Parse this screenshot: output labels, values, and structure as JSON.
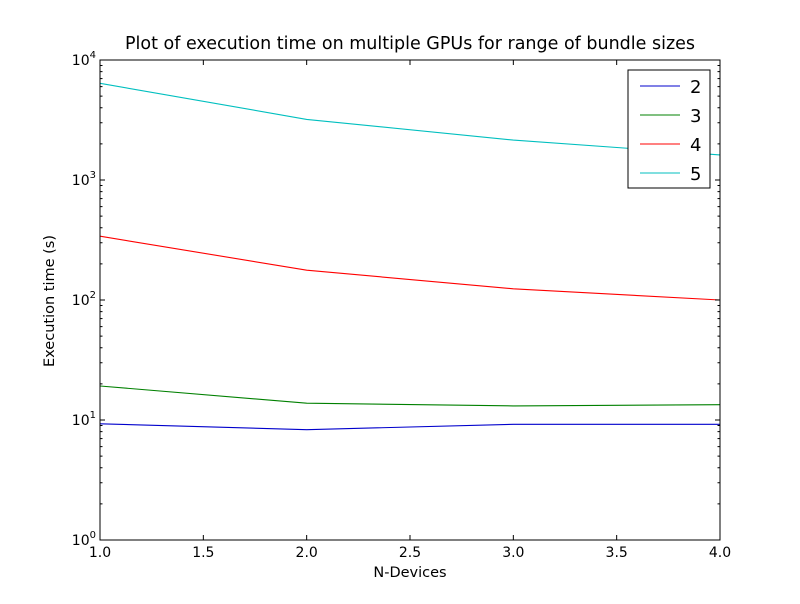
{
  "chart_data": {
    "type": "line",
    "title": "Plot of execution time on multiple GPUs for range of bundle sizes",
    "xlabel": "N-Devices",
    "ylabel": "Execution time (s)",
    "xlim": [
      1.0,
      4.0
    ],
    "ylim": [
      1,
      10000
    ],
    "yscale": "log",
    "grid": false,
    "legend_position": "top-right",
    "x": [
      1.0,
      2.0,
      3.0,
      4.0
    ],
    "xticks": [
      "1.0",
      "1.5",
      "2.0",
      "2.5",
      "3.0",
      "3.5",
      "4.0"
    ],
    "yticks": [
      {
        "base": "10",
        "exp": "0"
      },
      {
        "base": "10",
        "exp": "1"
      },
      {
        "base": "10",
        "exp": "2"
      },
      {
        "base": "10",
        "exp": "3"
      },
      {
        "base": "10",
        "exp": "4"
      }
    ],
    "series": [
      {
        "name": "2",
        "color": "#0000cc",
        "values": [
          9.3,
          8.3,
          9.2,
          9.2
        ]
      },
      {
        "name": "3",
        "color": "#008000",
        "values": [
          19.2,
          13.8,
          13.1,
          13.4
        ]
      },
      {
        "name": "4",
        "color": "#ff0000",
        "values": [
          340,
          177,
          124,
          100
        ]
      },
      {
        "name": "5",
        "color": "#00bfbf",
        "values": [
          6400,
          3200,
          2150,
          1620
        ]
      }
    ]
  }
}
